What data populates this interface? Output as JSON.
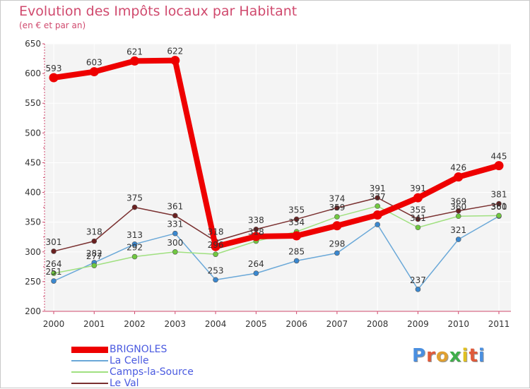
{
  "header": {
    "title": "Evolution des Impôts locaux par Habitant",
    "subtitle": "(en € et par an)"
  },
  "logo": {
    "text": "Proxiti",
    "colors": [
      "#4a8fe0",
      "#e05a3a",
      "#e0a030",
      "#3fae4a",
      "#e0c020",
      "#e05a3a",
      "#4a8fe0"
    ]
  },
  "chart_data": {
    "type": "line",
    "title": "Evolution des Impôts locaux par Habitant",
    "subtitle": "(en € et par an)",
    "xlabel": "",
    "ylabel": "",
    "ylim": [
      200,
      650
    ],
    "yticks": [
      200,
      250,
      300,
      350,
      400,
      450,
      500,
      550,
      600,
      650
    ],
    "grid": true,
    "legend_position": "bottom-left",
    "categories": [
      "2000",
      "2001",
      "2002",
      "2003",
      "2004",
      "2005",
      "2006",
      "2007",
      "2008",
      "2009",
      "2010",
      "2011"
    ],
    "series": [
      {
        "name": "BRIGNOLES",
        "color": "#ee0000",
        "dot": "#ee0000",
        "thick": true,
        "values": [
          593,
          603,
          621,
          622,
          309,
          326,
          327,
          344,
          362,
          391,
          426,
          445
        ],
        "labels": [
          "593",
          "603",
          "621",
          "622",
          "",
          "",
          "",
          "",
          "",
          "391",
          "426",
          "445"
        ]
      },
      {
        "name": "La Celle",
        "color": "#6aa8d8",
        "dot": "#3a88d0",
        "thick": false,
        "values": [
          251,
          282,
          313,
          331,
          253,
          264,
          285,
          298,
          346,
          237,
          321,
          360
        ],
        "labels": [
          "251",
          "282",
          "313",
          "331",
          "253",
          "264",
          "285",
          "298",
          "",
          "237",
          "321",
          "360"
        ]
      },
      {
        "name": "Camps-la-Source",
        "color": "#a0e080",
        "dot": "#70c840",
        "thick": false,
        "values": [
          264,
          277,
          292,
          300,
          296,
          318,
          334,
          359,
          377,
          341,
          360,
          361
        ],
        "labels": [
          "264",
          "277",
          "292",
          "300",
          "296",
          "318",
          "334",
          "359",
          "377",
          "341",
          "360",
          "361"
        ]
      },
      {
        "name": "Le Val",
        "color": "#7a3030",
        "dot": "#6a2020",
        "thick": false,
        "values": [
          301,
          318,
          375,
          361,
          318,
          338,
          355,
          374,
          391,
          355,
          369,
          381
        ],
        "labels": [
          "301",
          "318",
          "375",
          "361",
          "318",
          "338",
          "355",
          "374",
          "391",
          "355",
          "369",
          "381"
        ]
      }
    ]
  }
}
